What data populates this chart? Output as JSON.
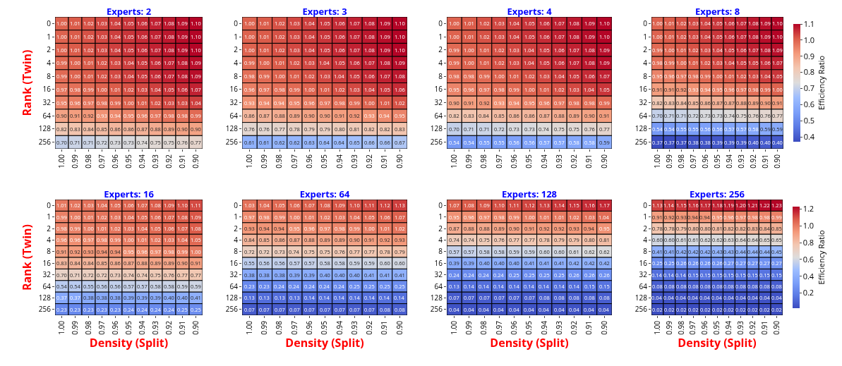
{
  "chart_data": [
    {
      "type": "heatmap",
      "title": "Experts: 2",
      "ylabel": "Rank (Twin)",
      "data_labels": true,
      "categories": [
        "1.00",
        "0.99",
        "0.98",
        "0.97",
        "0.96",
        "0.95",
        "0.94",
        "0.93",
        "0.92",
        "0.91",
        "0.90"
      ],
      "y_categories": [
        "0",
        "1",
        "2",
        "4",
        "8",
        "16",
        "32",
        "64",
        "128",
        "256"
      ],
      "cells": [
        [
          1.0,
          1.01,
          1.02,
          1.03,
          1.04,
          1.05,
          1.06,
          1.07,
          1.08,
          1.09,
          1.1
        ],
        [
          1.0,
          1.01,
          1.02,
          1.03,
          1.04,
          1.05,
          1.06,
          1.07,
          1.08,
          1.09,
          1.1
        ],
        [
          1.0,
          1.01,
          1.02,
          1.03,
          1.04,
          1.05,
          1.06,
          1.07,
          1.08,
          1.09,
          1.1
        ],
        [
          0.99,
          1.0,
          1.01,
          1.02,
          1.03,
          1.04,
          1.05,
          1.06,
          1.07,
          1.08,
          1.09
        ],
        [
          0.99,
          1.0,
          1.01,
          1.02,
          1.03,
          1.04,
          1.05,
          1.06,
          1.07,
          1.08,
          1.09
        ],
        [
          0.97,
          0.98,
          0.99,
          1.0,
          1.01,
          1.02,
          1.03,
          1.04,
          1.05,
          1.06,
          1.07
        ],
        [
          0.95,
          0.96,
          0.97,
          0.98,
          0.99,
          1.0,
          1.01,
          1.02,
          1.03,
          1.03,
          1.04
        ],
        [
          0.9,
          0.91,
          0.92,
          0.93,
          0.94,
          0.95,
          0.96,
          0.97,
          0.98,
          0.98,
          0.99
        ],
        [
          0.82,
          0.83,
          0.84,
          0.85,
          0.86,
          0.86,
          0.87,
          0.88,
          0.89,
          0.9,
          0.9
        ],
        [
          0.7,
          0.71,
          0.71,
          0.72,
          0.73,
          0.73,
          0.74,
          0.75,
          0.75,
          0.76,
          0.77
        ]
      ],
      "cell_labels": [
        [
          "1.00",
          "1.01",
          "1.02",
          "1.03",
          "1.04",
          "1.05",
          "1.06",
          "1.07",
          "1.08",
          "1.09",
          "1.10"
        ],
        [
          "1.00",
          "1.01",
          "1.02",
          "1.03",
          "1.04",
          "1.05",
          "1.06",
          "1.07",
          "1.08",
          "1.09",
          "1.10"
        ],
        [
          "1.00",
          "1.01",
          "1.02",
          "1.03",
          "1.04",
          "1.05",
          "1.06",
          "1.07",
          "1.08",
          "1.09",
          "1.10"
        ],
        [
          "0.99",
          "1.00",
          "1.01",
          "1.02",
          "1.03",
          "1.04",
          "1.05",
          "1.06",
          "1.07",
          "1.08",
          "1.09"
        ],
        [
          "0.99",
          "1.00",
          "1.01",
          "1.02",
          "1.03",
          "1.04",
          "1.05",
          "1.06",
          "1.07",
          "1.08",
          "1.09"
        ],
        [
          "0.97",
          "0.98",
          "0.99",
          "1.00",
          "1.01",
          "1.02",
          "1.03",
          "1.04",
          "1.05",
          "1.06",
          "1.07"
        ],
        [
          "0.95",
          "0.96",
          "0.97",
          "0.98",
          "0.99",
          "1.00",
          "1.01",
          "1.02",
          "1.03",
          "1.03",
          "1.04"
        ],
        [
          "0.90",
          "0.91",
          "0.92",
          "0.93",
          "0.94",
          "0.95",
          "0.96",
          "0.97",
          "0.98",
          "0.98",
          "0.99"
        ],
        [
          "0.82",
          "0.83",
          "0.84",
          "0.85",
          "0.86",
          "0.86",
          "0.87",
          "0.88",
          "0.89",
          "0.90",
          "0.90"
        ],
        [
          "0.70",
          "0.71",
          "0.71",
          "0.72",
          "0.73",
          "0.73",
          "0.74",
          "0.75",
          "0.75",
          "0.76",
          "0.77"
        ]
      ]
    },
    {
      "type": "heatmap",
      "title": "Experts: 3",
      "data_labels": true,
      "categories": [
        "1.00",
        "0.99",
        "0.98",
        "0.97",
        "0.96",
        "0.95",
        "0.94",
        "0.93",
        "0.92",
        "0.91",
        "0.90"
      ],
      "y_categories": [
        "0",
        "1",
        "2",
        "4",
        "8",
        "16",
        "32",
        "64",
        "128",
        "256"
      ],
      "cells": [
        [
          1.0,
          1.01,
          1.02,
          1.03,
          1.04,
          1.05,
          1.06,
          1.07,
          1.08,
          1.09,
          1.1
        ],
        [
          1.0,
          1.01,
          1.02,
          1.03,
          1.04,
          1.05,
          1.06,
          1.07,
          1.08,
          1.09,
          1.1
        ],
        [
          1.0,
          1.01,
          1.02,
          1.03,
          1.04,
          1.05,
          1.06,
          1.07,
          1.08,
          1.09,
          1.1
        ],
        [
          0.99,
          1.0,
          1.01,
          1.02,
          1.03,
          1.04,
          1.05,
          1.06,
          1.07,
          1.08,
          1.09
        ],
        [
          0.98,
          0.99,
          1.0,
          1.01,
          1.02,
          1.03,
          1.04,
          1.05,
          1.06,
          1.07,
          1.08
        ],
        [
          0.96,
          0.97,
          0.98,
          0.99,
          1.0,
          1.01,
          1.02,
          1.03,
          1.04,
          1.05,
          1.06
        ],
        [
          0.93,
          0.94,
          0.94,
          0.95,
          0.96,
          0.97,
          0.98,
          0.99,
          1.0,
          1.01,
          1.02
        ],
        [
          0.86,
          0.87,
          0.88,
          0.89,
          0.9,
          0.9,
          0.91,
          0.92,
          0.93,
          0.94,
          0.95
        ],
        [
          0.76,
          0.76,
          0.77,
          0.78,
          0.79,
          0.79,
          0.8,
          0.81,
          0.82,
          0.82,
          0.83
        ],
        [
          0.61,
          0.61,
          0.62,
          0.62,
          0.63,
          0.64,
          0.64,
          0.65,
          0.66,
          0.66,
          0.67
        ]
      ],
      "cell_labels": [
        [
          "1.00",
          "1.01",
          "1.02",
          "1.03",
          "1.04",
          "1.05",
          "1.06",
          "1.07",
          "1.08",
          "1.09",
          "1.10"
        ],
        [
          "1.00",
          "1.01",
          "1.02",
          "1.03",
          "1.04",
          "1.05",
          "1.06",
          "1.07",
          "1.08",
          "1.09",
          "1.10"
        ],
        [
          "1.00",
          "1.01",
          "1.02",
          "1.03",
          "1.04",
          "1.05",
          "1.06",
          "1.07",
          "1.08",
          "1.09",
          "1.10"
        ],
        [
          "0.99",
          "1.00",
          "1.01",
          "1.02",
          "1.03",
          "1.04",
          "1.05",
          "1.06",
          "1.07",
          "1.08",
          "1.09"
        ],
        [
          "0.98",
          "0.99",
          "1.00",
          "1.01",
          "1.02",
          "1.03",
          "1.04",
          "1.05",
          "1.06",
          "1.07",
          "1.08"
        ],
        [
          "0.96",
          "0.97",
          "0.98",
          "0.99",
          "1.00",
          "1.01",
          "1.02",
          "1.03",
          "1.04",
          "1.05",
          "1.06"
        ],
        [
          "0.93",
          "0.94",
          "0.94",
          "0.95",
          "0.96",
          "0.97",
          "0.98",
          "0.99",
          "1.00",
          "1.01",
          "1.02"
        ],
        [
          "0.86",
          "0.87",
          "0.88",
          "0.89",
          "0.90",
          "0.90",
          "0.91",
          "0.92",
          "0.93",
          "0.94",
          "0.95"
        ],
        [
          "0.76",
          "0.76",
          "0.77",
          "0.78",
          "0.79",
          "0.79",
          "0.80",
          "0.81",
          "0.82",
          "0.82",
          "0.83"
        ],
        [
          "0.61",
          "0.61",
          "0.62",
          "0.62",
          "0.63",
          "0.64",
          "0.64",
          "0.65",
          "0.66",
          "0.66",
          "0.67"
        ]
      ]
    },
    {
      "type": "heatmap",
      "title": "Experts: 4",
      "data_labels": true,
      "categories": [
        "1.00",
        "0.99",
        "0.98",
        "0.97",
        "0.96",
        "0.95",
        "0.94",
        "0.93",
        "0.92",
        "0.91",
        "0.90"
      ],
      "y_categories": [
        "0",
        "1",
        "2",
        "4",
        "8",
        "16",
        "32",
        "64",
        "128",
        "256"
      ],
      "cells": [
        [
          1.0,
          1.01,
          1.02,
          1.03,
          1.04,
          1.05,
          1.06,
          1.07,
          1.08,
          1.09,
          1.1
        ],
        [
          1.0,
          1.01,
          1.02,
          1.03,
          1.04,
          1.05,
          1.06,
          1.07,
          1.08,
          1.09,
          1.1
        ],
        [
          0.99,
          1.0,
          1.01,
          1.02,
          1.03,
          1.04,
          1.05,
          1.06,
          1.07,
          1.08,
          1.09
        ],
        [
          0.99,
          1.0,
          1.01,
          1.02,
          1.03,
          1.04,
          1.05,
          1.06,
          1.07,
          1.08,
          1.09
        ],
        [
          0.98,
          0.98,
          0.99,
          1.0,
          1.01,
          1.02,
          1.03,
          1.04,
          1.05,
          1.06,
          1.07
        ],
        [
          0.95,
          0.96,
          0.97,
          0.98,
          0.99,
          1.0,
          1.01,
          1.02,
          1.03,
          1.04,
          1.05
        ],
        [
          0.9,
          0.91,
          0.92,
          0.93,
          0.94,
          0.95,
          0.96,
          0.97,
          0.98,
          0.98,
          0.99
        ],
        [
          0.82,
          0.83,
          0.84,
          0.85,
          0.86,
          0.86,
          0.87,
          0.88,
          0.89,
          0.9,
          0.91
        ],
        [
          0.7,
          0.71,
          0.71,
          0.72,
          0.73,
          0.73,
          0.74,
          0.75,
          0.75,
          0.76,
          0.77
        ],
        [
          0.54,
          0.54,
          0.55,
          0.55,
          0.56,
          0.56,
          0.57,
          0.57,
          0.58,
          0.58,
          0.59
        ]
      ],
      "cell_labels": [
        [
          "1.00",
          "1.01",
          "1.02",
          "1.03",
          "1.04",
          "1.05",
          "1.06",
          "1.07",
          "1.08",
          "1.09",
          "1.10"
        ],
        [
          "1.00",
          "1.01",
          "1.02",
          "1.03",
          "1.04",
          "1.05",
          "1.06",
          "1.07",
          "1.08",
          "1.09",
          "1.10"
        ],
        [
          "0.99",
          "1.00",
          "1.01",
          "1.02",
          "1.03",
          "1.04",
          "1.05",
          "1.06",
          "1.07",
          "1.08",
          "1.09"
        ],
        [
          "0.99",
          "1.00",
          "1.01",
          "1.02",
          "1.03",
          "1.04",
          "1.05",
          "1.06",
          "1.07",
          "1.08",
          "1.09"
        ],
        [
          "0.98",
          "0.98",
          "0.99",
          "1.00",
          "1.01",
          "1.02",
          "1.03",
          "1.04",
          "1.05",
          "1.06",
          "1.07"
        ],
        [
          "0.95",
          "0.96",
          "0.97",
          "0.98",
          "0.99",
          "1.00",
          "1.01",
          "1.02",
          "1.03",
          "1.04",
          "1.05"
        ],
        [
          "0.90",
          "0.91",
          "0.92",
          "0.93",
          "0.94",
          "0.95",
          "0.96",
          "0.97",
          "0.98",
          "0.98",
          "0.99"
        ],
        [
          "0.82",
          "0.83",
          "0.84",
          "0.85",
          "0.86",
          "0.86",
          "0.87",
          "0.88",
          "0.89",
          "0.90",
          "0.91"
        ],
        [
          "0.70",
          "0.71",
          "0.71",
          "0.72",
          "0.73",
          "0.73",
          "0.74",
          "0.75",
          "0.75",
          "0.76",
          "0.77"
        ],
        [
          "0.54",
          "0.54",
          "0.55",
          "0.55",
          "0.56",
          "0.56",
          "0.57",
          "0.57",
          "0.58",
          "0.58",
          "0.59"
        ]
      ]
    },
    {
      "type": "heatmap",
      "title": "Experts: 8",
      "data_labels": true,
      "clim": [
        0.37,
        1.1
      ],
      "clabel": "Efficiency Ratio",
      "cticks": [
        0.4,
        0.5,
        0.6,
        0.7,
        0.8,
        0.9,
        {
          "value": 1.0,
          "label": "1.0"
        },
        1.1
      ],
      "categories": [
        "1.00",
        "0.99",
        "0.98",
        "0.97",
        "0.96",
        "0.95",
        "0.94",
        "0.93",
        "0.92",
        "0.91",
        "0.90"
      ],
      "y_categories": [
        "0",
        "1",
        "2",
        "4",
        "8",
        "16",
        "32",
        "64",
        "128",
        "256"
      ],
      "cells": [
        [
          1.0,
          1.01,
          1.02,
          1.03,
          1.04,
          1.05,
          1.06,
          1.07,
          1.08,
          1.09,
          1.1
        ],
        [
          1.0,
          1.01,
          1.02,
          1.03,
          1.04,
          1.05,
          1.06,
          1.07,
          1.08,
          1.09,
          1.1
        ],
        [
          0.99,
          1.0,
          1.01,
          1.02,
          1.03,
          1.04,
          1.05,
          1.06,
          1.07,
          1.08,
          1.09
        ],
        [
          0.98,
          0.99,
          1.0,
          1.01,
          1.02,
          1.03,
          1.04,
          1.05,
          1.05,
          1.06,
          1.07
        ],
        [
          0.95,
          0.96,
          0.97,
          0.98,
          0.99,
          1.0,
          1.01,
          1.02,
          1.03,
          1.04,
          1.05
        ],
        [
          0.91,
          0.91,
          0.92,
          0.93,
          0.94,
          0.95,
          0.96,
          0.97,
          0.98,
          0.99,
          1.0
        ],
        [
          0.82,
          0.83,
          0.84,
          0.85,
          0.86,
          0.87,
          0.87,
          0.88,
          0.89,
          0.9,
          0.91
        ],
        [
          0.7,
          0.71,
          0.71,
          0.72,
          0.73,
          0.73,
          0.74,
          0.75,
          0.76,
          0.76,
          0.77
        ],
        [
          0.54,
          0.54,
          0.55,
          0.55,
          0.56,
          0.56,
          0.57,
          0.57,
          0.58,
          0.59,
          0.59
        ],
        [
          0.37,
          0.37,
          0.37,
          0.38,
          0.38,
          0.39,
          0.39,
          0.39,
          0.4,
          0.4,
          0.4
        ]
      ],
      "cell_labels": [
        [
          "1.00",
          "1.01",
          "1.02",
          "1.03",
          "1.04",
          "1.05",
          "1.06",
          "1.07",
          "1.08",
          "1.09",
          "1.10"
        ],
        [
          "1.00",
          "1.01",
          "1.02",
          "1.03",
          "1.04",
          "1.05",
          "1.06",
          "1.07",
          "1.08",
          "1.09",
          "1.10"
        ],
        [
          "0.99",
          "1.00",
          "1.01",
          "1.02",
          "1.03",
          "1.04",
          "1.05",
          "1.06",
          "1.07",
          "1.08",
          "1.09"
        ],
        [
          "0.98",
          "0.99",
          "1.00",
          "1.01",
          "1.02",
          "1.03",
          "1.04",
          "1.05",
          "1.05",
          "1.06",
          "1.07"
        ],
        [
          "0.95",
          "0.96",
          "0.97",
          "0.98",
          "0.99",
          "1.00",
          "1.01",
          "1.02",
          "1.03",
          "1.04",
          "1.05"
        ],
        [
          "0.91",
          "0.91",
          "0.92",
          "0.93",
          "0.94",
          "0.95",
          "0.96",
          "0.97",
          "0.98",
          "0.99",
          "1.00"
        ],
        [
          "0.82",
          "0.83",
          "0.84",
          "0.85",
          "0.86",
          "0.87",
          "0.87",
          "0.88",
          "0.89",
          "0.90",
          "0.91"
        ],
        [
          "0.70",
          "0.71",
          "0.71",
          "0.72",
          "0.73",
          "0.73",
          "0.74",
          "0.75",
          "0.76",
          "0.76",
          "0.77"
        ],
        [
          "0.54",
          "0.54",
          "0.55",
          "0.55",
          "0.56",
          "0.56",
          "0.57",
          "0.57",
          "0.58",
          "0.59",
          "0.59"
        ],
        [
          "0.37",
          "0.37",
          "0.37",
          "0.38",
          "0.38",
          "0.39",
          "0.39",
          "0.39",
          "0.40",
          "0.40",
          "0.40"
        ]
      ]
    },
    {
      "type": "heatmap",
      "title": "Experts: 16",
      "ylabel": "Rank (Twin)",
      "xlabel": "Density (Split)",
      "data_labels": true,
      "categories": [
        "1.00",
        "0.99",
        "0.98",
        "0.97",
        "0.96",
        "0.95",
        "0.94",
        "0.93",
        "0.92",
        "0.91",
        "0.90"
      ],
      "y_categories": [
        "0",
        "1",
        "2",
        "4",
        "8",
        "16",
        "32",
        "64",
        "128",
        "256"
      ],
      "cells": [
        [
          1.01,
          1.02,
          1.03,
          1.04,
          1.05,
          1.06,
          1.07,
          1.08,
          1.09,
          1.1,
          1.11
        ],
        [
          0.99,
          1.0,
          1.01,
          1.02,
          1.03,
          1.04,
          1.05,
          1.06,
          1.07,
          1.08,
          1.09
        ],
        [
          0.98,
          0.99,
          1.0,
          1.01,
          1.02,
          1.03,
          1.04,
          1.05,
          1.06,
          1.07,
          1.08
        ],
        [
          0.96,
          0.96,
          0.97,
          0.98,
          0.99,
          1.0,
          1.01,
          1.02,
          1.03,
          1.04,
          1.05
        ],
        [
          0.91,
          0.92,
          0.93,
          0.94,
          0.94,
          0.95,
          0.96,
          0.97,
          0.98,
          0.99,
          1.0
        ],
        [
          0.83,
          0.84,
          0.84,
          0.85,
          0.86,
          0.87,
          0.88,
          0.89,
          0.89,
          0.9,
          0.91
        ],
        [
          0.7,
          0.71,
          0.72,
          0.72,
          0.73,
          0.74,
          0.74,
          0.75,
          0.76,
          0.77,
          0.77
        ],
        [
          0.54,
          0.54,
          0.55,
          0.56,
          0.56,
          0.57,
          0.57,
          0.58,
          0.58,
          0.59,
          0.59
        ],
        [
          0.37,
          0.37,
          0.38,
          0.38,
          0.38,
          0.39,
          0.39,
          0.39,
          0.4,
          0.4,
          0.41
        ],
        [
          0.23,
          0.23,
          0.23,
          0.23,
          0.23,
          0.24,
          0.24,
          0.24,
          0.24,
          0.25,
          0.25
        ]
      ],
      "cell_labels": [
        [
          "1.01",
          "1.02",
          "1.03",
          "1.04",
          "1.05",
          "1.06",
          "1.07",
          "1.08",
          "1.09",
          "1.10",
          "1.11"
        ],
        [
          "0.99",
          "1.00",
          "1.01",
          "1.02",
          "1.03",
          "1.04",
          "1.05",
          "1.06",
          "1.07",
          "1.08",
          "1.09"
        ],
        [
          "0.98",
          "0.99",
          "1.00",
          "1.01",
          "1.02",
          "1.03",
          "1.04",
          "1.05",
          "1.06",
          "1.07",
          "1.08"
        ],
        [
          "0.96",
          "0.96",
          "0.97",
          "0.98",
          "0.99",
          "1.00",
          "1.01",
          "1.02",
          "1.03",
          "1.04",
          "1.05"
        ],
        [
          "0.91",
          "0.92",
          "0.93",
          "0.94",
          "0.94",
          "0.95",
          "0.96",
          "0.97",
          "0.98",
          "0.99",
          "1.00"
        ],
        [
          "0.83",
          "0.84",
          "0.84",
          "0.85",
          "0.86",
          "0.87",
          "0.88",
          "0.89",
          "0.89",
          "0.90",
          "0.91"
        ],
        [
          "0.70",
          "0.71",
          "0.72",
          "0.72",
          "0.73",
          "0.74",
          "0.74",
          "0.75",
          "0.76",
          "0.77",
          "0.77"
        ],
        [
          "0.54",
          "0.54",
          "0.55",
          "0.56",
          "0.56",
          "0.57",
          "0.57",
          "0.58",
          "0.58",
          "0.59",
          "0.59"
        ],
        [
          "0.37",
          "0.37",
          "0.38",
          "0.38",
          "0.38",
          "0.39",
          "0.39",
          "0.39",
          "0.40",
          "0.40",
          "0.41"
        ],
        [
          "0.23",
          "0.23",
          "0.23",
          "0.23",
          "0.23",
          "0.24",
          "0.24",
          "0.24",
          "0.24",
          "0.25",
          "0.25"
        ]
      ]
    },
    {
      "type": "heatmap",
      "title": "Experts: 64",
      "xlabel": "Density (Split)",
      "data_labels": true,
      "categories": [
        "1.00",
        "0.99",
        "0.98",
        "0.97",
        "0.96",
        "0.95",
        "0.94",
        "0.93",
        "0.92",
        "0.91",
        "0.90"
      ],
      "y_categories": [
        "0",
        "1",
        "2",
        "4",
        "8",
        "16",
        "32",
        "64",
        "128",
        "256"
      ],
      "cells": [
        [
          1.03,
          1.04,
          1.05,
          1.06,
          1.07,
          1.08,
          1.09,
          1.1,
          1.11,
          1.12,
          1.13
        ],
        [
          0.97,
          0.98,
          0.99,
          1.0,
          1.01,
          1.02,
          1.03,
          1.04,
          1.05,
          1.06,
          1.07
        ],
        [
          0.93,
          0.94,
          0.94,
          0.95,
          0.96,
          0.97,
          0.98,
          0.99,
          1.0,
          1.01,
          1.02
        ],
        [
          0.84,
          0.85,
          0.86,
          0.87,
          0.88,
          0.89,
          0.89,
          0.9,
          0.91,
          0.92,
          0.93
        ],
        [
          0.72,
          0.72,
          0.73,
          0.74,
          0.75,
          0.75,
          0.76,
          0.77,
          0.77,
          0.78,
          0.79
        ],
        [
          0.55,
          0.56,
          0.56,
          0.57,
          0.57,
          0.58,
          0.58,
          0.59,
          0.59,
          0.6,
          0.6
        ],
        [
          0.38,
          0.38,
          0.38,
          0.39,
          0.39,
          0.4,
          0.4,
          0.4,
          0.41,
          0.41,
          0.41
        ],
        [
          0.23,
          0.23,
          0.24,
          0.24,
          0.24,
          0.24,
          0.24,
          0.25,
          0.25,
          0.25,
          0.25
        ],
        [
          0.13,
          0.13,
          0.13,
          0.13,
          0.14,
          0.14,
          0.14,
          0.14,
          0.14,
          0.14,
          0.14
        ],
        [
          0.07,
          0.07,
          0.07,
          0.07,
          0.07,
          0.07,
          0.07,
          0.07,
          0.07,
          0.08,
          0.08
        ]
      ],
      "cell_labels": [
        [
          "1.03",
          "1.04",
          "1.05",
          "1.06",
          "1.07",
          "1.08",
          "1.09",
          "1.10",
          "1.11",
          "1.12",
          "1.13"
        ],
        [
          "0.97",
          "0.98",
          "0.99",
          "1.00",
          "1.01",
          "1.02",
          "1.03",
          "1.04",
          "1.05",
          "1.06",
          "1.07"
        ],
        [
          "0.93",
          "0.94",
          "0.94",
          "0.95",
          "0.96",
          "0.97",
          "0.98",
          "0.99",
          "1.00",
          "1.01",
          "1.02"
        ],
        [
          "0.84",
          "0.85",
          "0.86",
          "0.87",
          "0.88",
          "0.89",
          "0.89",
          "0.90",
          "0.91",
          "0.92",
          "0.93"
        ],
        [
          "0.72",
          "0.72",
          "0.73",
          "0.74",
          "0.75",
          "0.75",
          "0.76",
          "0.77",
          "0.77",
          "0.78",
          "0.79"
        ],
        [
          "0.55",
          "0.56",
          "0.56",
          "0.57",
          "0.57",
          "0.58",
          "0.58",
          "0.59",
          "0.59",
          "0.60",
          "0.60"
        ],
        [
          "0.38",
          "0.38",
          "0.38",
          "0.39",
          "0.39",
          "0.40",
          "0.40",
          "0.40",
          "0.41",
          "0.41",
          "0.41"
        ],
        [
          "0.23",
          "0.23",
          "0.24",
          "0.24",
          "0.24",
          "0.24",
          "0.24",
          "0.25",
          "0.25",
          "0.25",
          "0.25"
        ],
        [
          "0.13",
          "0.13",
          "0.13",
          "0.13",
          "0.14",
          "0.14",
          "0.14",
          "0.14",
          "0.14",
          "0.14",
          "0.14"
        ],
        [
          "0.07",
          "0.07",
          "0.07",
          "0.07",
          "0.07",
          "0.07",
          "0.07",
          "0.07",
          "0.07",
          "0.08",
          "0.08"
        ]
      ]
    },
    {
      "type": "heatmap",
      "title": "Experts: 128",
      "xlabel": "Density (Split)",
      "data_labels": true,
      "categories": [
        "1.00",
        "0.99",
        "0.98",
        "0.97",
        "0.96",
        "0.95",
        "0.94",
        "0.93",
        "0.92",
        "0.91",
        "0.90"
      ],
      "y_categories": [
        "0",
        "1",
        "2",
        "4",
        "8",
        "16",
        "32",
        "64",
        "128",
        "256"
      ],
      "cells": [
        [
          1.07,
          1.08,
          1.09,
          1.1,
          1.11,
          1.12,
          1.13,
          1.14,
          1.15,
          1.16,
          1.17
        ],
        [
          0.95,
          0.96,
          0.97,
          0.98,
          0.99,
          1.0,
          1.01,
          1.01,
          1.02,
          1.03,
          1.04
        ],
        [
          0.87,
          0.88,
          0.88,
          0.89,
          0.9,
          0.91,
          0.92,
          0.92,
          0.93,
          0.94,
          0.95
        ],
        [
          0.74,
          0.74,
          0.75,
          0.76,
          0.77,
          0.77,
          0.78,
          0.79,
          0.79,
          0.8,
          0.81
        ],
        [
          0.57,
          0.57,
          0.58,
          0.58,
          0.59,
          0.59,
          0.6,
          0.6,
          0.61,
          0.62,
          0.62
        ],
        [
          0.39,
          0.39,
          0.4,
          0.4,
          0.4,
          0.41,
          0.41,
          0.41,
          0.42,
          0.42,
          0.42
        ],
        [
          0.24,
          0.24,
          0.24,
          0.24,
          0.25,
          0.25,
          0.25,
          0.25,
          0.26,
          0.26,
          0.26
        ],
        [
          0.13,
          0.14,
          0.14,
          0.14,
          0.14,
          0.14,
          0.14,
          0.14,
          0.14,
          0.15,
          0.15
        ],
        [
          0.07,
          0.07,
          0.07,
          0.07,
          0.07,
          0.07,
          0.08,
          0.08,
          0.08,
          0.08,
          0.08
        ],
        [
          0.04,
          0.04,
          0.04,
          0.04,
          0.04,
          0.04,
          0.04,
          0.04,
          0.04,
          0.04,
          0.04
        ]
      ],
      "cell_labels": [
        [
          "1.07",
          "1.08",
          "1.09",
          "1.10",
          "1.11",
          "1.12",
          "1.13",
          "1.14",
          "1.15",
          "1.16",
          "1.17"
        ],
        [
          "0.95",
          "0.96",
          "0.97",
          "0.98",
          "0.99",
          "1.00",
          "1.01",
          "1.01",
          "1.02",
          "1.03",
          "1.04"
        ],
        [
          "0.87",
          "0.88",
          "0.88",
          "0.89",
          "0.90",
          "0.91",
          "0.92",
          "0.92",
          "0.93",
          "0.94",
          "0.95"
        ],
        [
          "0.74",
          "0.74",
          "0.75",
          "0.76",
          "0.77",
          "0.77",
          "0.78",
          "0.79",
          "0.79",
          "0.80",
          "0.81"
        ],
        [
          "0.57",
          "0.57",
          "0.58",
          "0.58",
          "0.59",
          "0.59",
          "0.60",
          "0.60",
          "0.61",
          "0.62",
          "0.62"
        ],
        [
          "0.39",
          "0.39",
          "0.40",
          "0.40",
          "0.40",
          "0.41",
          "0.41",
          "0.41",
          "0.42",
          "0.42",
          "0.42"
        ],
        [
          "0.24",
          "0.24",
          "0.24",
          "0.24",
          "0.25",
          "0.25",
          "0.25",
          "0.25",
          "0.26",
          "0.26",
          "0.26"
        ],
        [
          "0.13",
          "0.14",
          "0.14",
          "0.14",
          "0.14",
          "0.14",
          "0.14",
          "0.14",
          "0.14",
          "0.15",
          "0.15"
        ],
        [
          "0.07",
          "0.07",
          "0.07",
          "0.07",
          "0.07",
          "0.07",
          "0.08",
          "0.08",
          "0.08",
          "0.08",
          "0.08"
        ],
        [
          "0.04",
          "0.04",
          "0.04",
          "0.04",
          "0.04",
          "0.04",
          "0.04",
          "0.04",
          "0.04",
          "0.04",
          "0.04"
        ]
      ]
    },
    {
      "type": "heatmap",
      "title": "Experts: 256",
      "xlabel": "Density (Split)",
      "data_labels": true,
      "clim": [
        0.02,
        1.23
      ],
      "clabel": "Efficiency Ratio",
      "cticks": [
        0.2,
        0.4,
        0.6,
        0.8,
        {
          "value": 1.0,
          "label": "1.0"
        },
        1.2
      ],
      "categories": [
        "1.00",
        "0.99",
        "0.98",
        "0.97",
        "0.96",
        "0.95",
        "0.94",
        "0.93",
        "0.92",
        "0.91",
        "0.90"
      ],
      "y_categories": [
        "0",
        "1",
        "2",
        "4",
        "8",
        "16",
        "32",
        "64",
        "128",
        "256"
      ],
      "cells": [
        [
          1.13,
          1.14,
          1.15,
          1.16,
          1.17,
          1.18,
          1.19,
          1.2,
          1.21,
          1.22,
          1.23
        ],
        [
          0.91,
          0.92,
          0.93,
          0.94,
          0.94,
          0.95,
          0.96,
          0.97,
          0.98,
          0.98,
          0.99
        ],
        [
          0.78,
          0.78,
          0.79,
          0.8,
          0.8,
          0.81,
          0.82,
          0.82,
          0.83,
          0.84,
          0.85
        ],
        [
          0.6,
          0.6,
          0.61,
          0.61,
          0.62,
          0.62,
          0.63,
          0.64,
          0.64,
          0.65,
          0.65
        ],
        [
          0.41,
          0.41,
          0.42,
          0.42,
          0.42,
          0.43,
          0.43,
          0.44,
          0.44,
          0.44,
          0.45
        ],
        [
          0.25,
          0.25,
          0.26,
          0.26,
          0.26,
          0.26,
          0.27,
          0.27,
          0.27,
          0.27,
          0.27
        ],
        [
          0.14,
          0.14,
          0.14,
          0.15,
          0.15,
          0.15,
          0.15,
          0.15,
          0.15,
          0.15,
          0.15
        ],
        [
          0.08,
          0.08,
          0.08,
          0.08,
          0.08,
          0.08,
          0.08,
          0.08,
          0.08,
          0.08,
          0.08
        ],
        [
          0.04,
          0.04,
          0.04,
          0.04,
          0.04,
          0.04,
          0.04,
          0.04,
          0.04,
          0.04,
          0.04
        ],
        [
          0.02,
          0.02,
          0.02,
          0.02,
          0.02,
          0.02,
          0.02,
          0.02,
          0.02,
          0.02,
          0.02
        ]
      ],
      "cell_labels": [
        [
          "1.13",
          "1.14",
          "1.15",
          "1.16",
          "1.17",
          "1.18",
          "1.19",
          "1.20",
          "1.21",
          "1.22",
          "1.23"
        ],
        [
          "0.91",
          "0.92",
          "0.93",
          "0.94",
          "0.94",
          "0.95",
          "0.96",
          "0.97",
          "0.98",
          "0.98",
          "0.99"
        ],
        [
          "0.78",
          "0.78",
          "0.79",
          "0.80",
          "0.80",
          "0.81",
          "0.82",
          "0.82",
          "0.83",
          "0.84",
          "0.85"
        ],
        [
          "0.60",
          "0.60",
          "0.61",
          "0.61",
          "0.62",
          "0.62",
          "0.63",
          "0.64",
          "0.64",
          "0.65",
          "0.65"
        ],
        [
          "0.41",
          "0.41",
          "0.42",
          "0.42",
          "0.42",
          "0.43",
          "0.43",
          "0.44",
          "0.44",
          "0.44",
          "0.45"
        ],
        [
          "0.25",
          "0.25",
          "0.26",
          "0.26",
          "0.26",
          "0.26",
          "0.27",
          "0.27",
          "0.27",
          "0.27",
          "0.27"
        ],
        [
          "0.14",
          "0.14",
          "0.14",
          "0.15",
          "0.15",
          "0.15",
          "0.15",
          "0.15",
          "0.15",
          "0.15",
          "0.15"
        ],
        [
          "0.08",
          "0.08",
          "0.08",
          "0.08",
          "0.08",
          "0.08",
          "0.08",
          "0.08",
          "0.08",
          "0.08",
          "0.08"
        ],
        [
          "0.04",
          "0.04",
          "0.04",
          "0.04",
          "0.04",
          "0.04",
          "0.04",
          "0.04",
          "0.04",
          "0.04",
          "0.04"
        ],
        [
          "0.02",
          "0.02",
          "0.02",
          "0.02",
          "0.02",
          "0.02",
          "0.02",
          "0.02",
          "0.02",
          "0.02",
          "0.02"
        ]
      ]
    }
  ]
}
